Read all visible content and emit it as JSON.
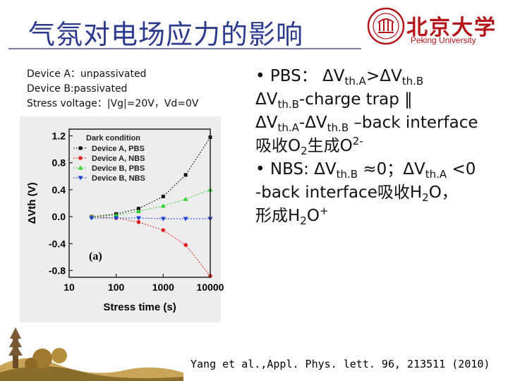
{
  "slide": {
    "title": "气氛对电场应力的影响",
    "logo": {
      "name_cn": "北京大学",
      "name_en": "Peking University",
      "color": "#b3151b"
    },
    "device_info": [
      "Device A：unpassivated",
      "Device B:passivated",
      "Stress voltage：|Vg|=20V，Vd=0V"
    ],
    "bullets": {
      "b1_bullet": "•",
      "b1_text": "PBS：",
      "b1_v1": "ΔV",
      "b1_s1": "th.A",
      "b1_gt": ">ΔV",
      "b1_s2": "th.B",
      "l2_v": "ΔV",
      "l2_s": "th.B",
      "l2_t": "-charge trap ‖",
      "l3_v1": "ΔV",
      "l3_s1": "th.A",
      "l3_minus": "-ΔV",
      "l3_s2": "th.B",
      "l3_t": " –back interface",
      "l4_t1": "吸收O",
      "l4_s1": "2",
      "l4_t2": "生成O",
      "l4_sup": "2-",
      "b2_bullet": "•",
      "b2_t1": "NBS: ΔV",
      "b2_s1": "th.B",
      "b2_t2": " ≈0；ΔV",
      "b2_s2": "th.A",
      "b2_t3": " <0",
      "l6_t1": "-back interface吸收H",
      "l6_s1": "2",
      "l6_t2": "O，",
      "l7_t1": "形成H",
      "l7_s1": "2",
      "l7_t2": "O",
      "l7_sup": "+"
    },
    "citation": "Yang et al.,Appl. Phys. lett. 96, 213511 (2010)"
  },
  "chart_data": {
    "type": "line",
    "panel_label": "(a)",
    "xlabel": "Stress time (s)",
    "ylabel": "ΔVth (V)",
    "xscale": "log",
    "xlim": [
      10,
      10000
    ],
    "ylim": [
      -0.9,
      1.3
    ],
    "xticks": [
      10,
      100,
      1000,
      10000
    ],
    "xtick_labels": [
      "10",
      "100",
      "1000",
      "10000"
    ],
    "yticks": [
      -0.8,
      -0.4,
      0.0,
      0.4,
      0.8,
      1.2
    ],
    "ytick_labels": [
      "-0.8",
      "-0.4",
      "0.0",
      "0.4",
      "0.8",
      "1.2"
    ],
    "legend_title": "Dark condition",
    "legend_position": "top-left",
    "background": "#ededed",
    "x": [
      30,
      100,
      300,
      1000,
      3000,
      10000
    ],
    "series": [
      {
        "name": "Device A, PBS",
        "color": "#111111",
        "marker": "square",
        "values": [
          0.0,
          0.04,
          0.12,
          0.3,
          0.62,
          1.18
        ]
      },
      {
        "name": "Device A, NBS",
        "color": "#e0201e",
        "marker": "circle",
        "values": [
          0.0,
          -0.02,
          -0.08,
          -0.2,
          -0.42,
          -0.88
        ]
      },
      {
        "name": "Device B, PBS",
        "color": "#2ed12e",
        "marker": "triangle-up",
        "values": [
          0.0,
          0.02,
          0.08,
          0.16,
          0.26,
          0.4
        ]
      },
      {
        "name": "Device B, NBS",
        "color": "#1a3fd6",
        "marker": "triangle-down",
        "values": [
          -0.02,
          -0.02,
          -0.02,
          -0.03,
          -0.03,
          -0.03
        ]
      }
    ]
  }
}
